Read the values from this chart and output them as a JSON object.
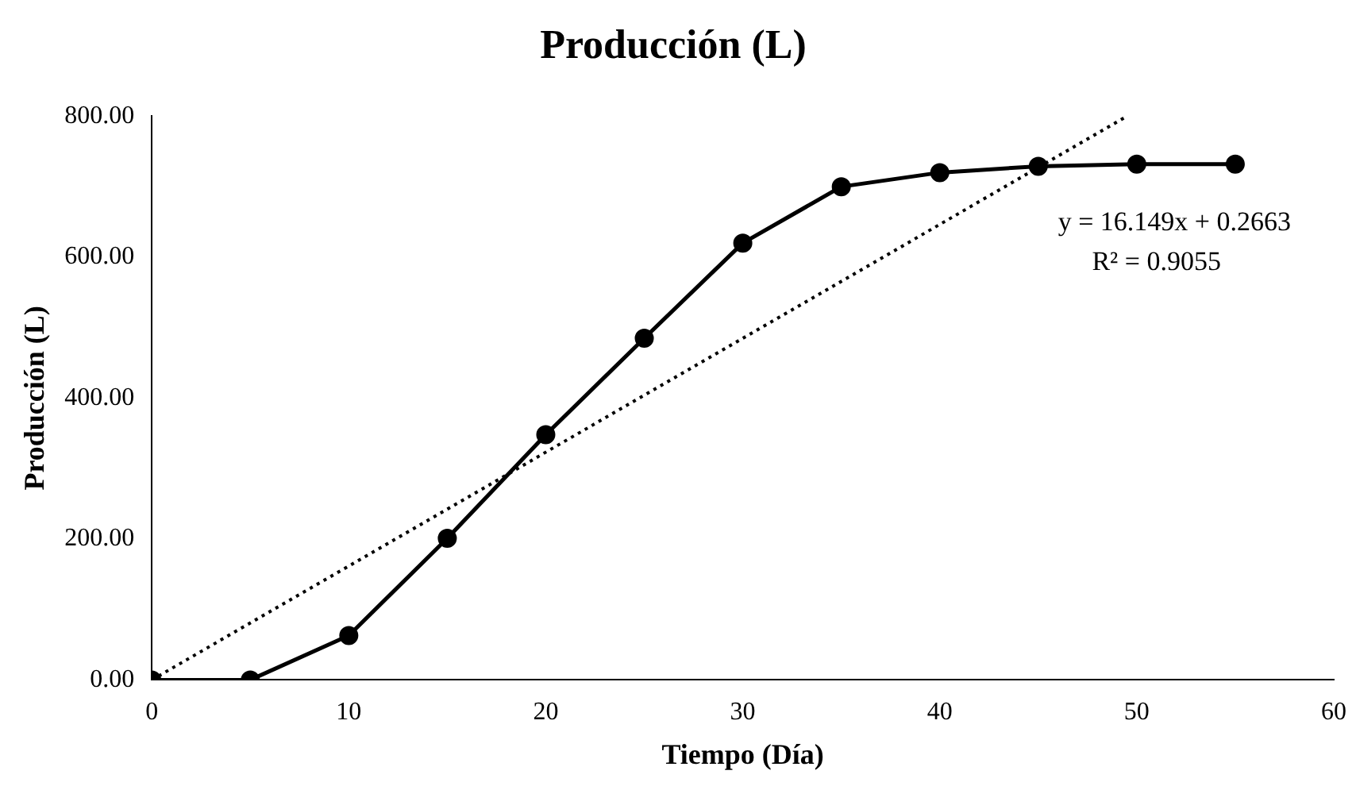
{
  "chart_data": {
    "type": "line",
    "title": "Producción (L)",
    "xlabel": "Tiempo (Día)",
    "ylabel": "Producción (L)",
    "x": [
      0,
      5,
      10,
      15,
      20,
      25,
      30,
      35,
      40,
      45,
      50,
      55
    ],
    "series": [
      {
        "color": "#000000",
        "values": [
          0,
          0,
          63,
          201,
          348,
          485,
          620,
          700,
          720,
          729,
          732,
          732
        ],
        "marker": "circle",
        "line_style": "solid"
      },
      {
        "type": "line",
        "color": "#000000",
        "x": [
          0,
          49.5
        ],
        "values": [
          0,
          800
        ],
        "marker": "none",
        "line_style": "dotted"
      }
    ],
    "xlim": [
      0,
      60
    ],
    "xticks": [
      0,
      10,
      20,
      30,
      40,
      50,
      60
    ],
    "ylim": [
      0,
      800
    ],
    "yticks": [
      {
        "value": 0,
        "label": "0.00"
      },
      {
        "value": 200,
        "label": "200.00"
      },
      {
        "value": 400,
        "label": "400.00"
      },
      {
        "value": 600,
        "label": "600.00"
      },
      {
        "value": 800,
        "label": "800.00"
      }
    ],
    "grid": false,
    "legend": false,
    "annotations": [
      "y = 16.149x + 0.2663",
      "R² = 0.9055"
    ]
  }
}
